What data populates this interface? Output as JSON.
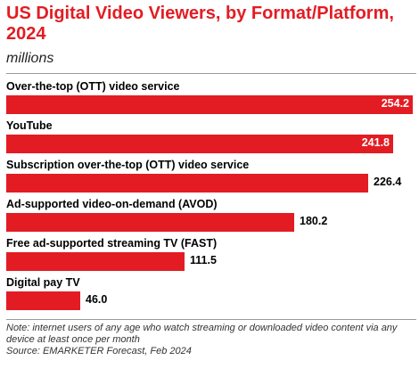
{
  "chart_data": {
    "type": "bar",
    "orientation": "horizontal",
    "title": "US Digital Video Viewers, by Format/Platform, 2024",
    "subtitle": "millions",
    "categories": [
      "Over-the-top (OTT) video service",
      "YouTube",
      "Subscription over-the-top (OTT) video service",
      "Ad-supported video-on-demand (AVOD)",
      "Free ad-supported streaming TV (FAST)",
      "Digital pay TV"
    ],
    "values": [
      254.2,
      241.8,
      226.4,
      180.2,
      111.5,
      46.0
    ],
    "value_labels": [
      "254.2",
      "241.8",
      "226.4",
      "180.2",
      "111.5",
      "46.0"
    ],
    "xlim": [
      0,
      254.2
    ],
    "grid": false,
    "bar_color": "#e31c23",
    "title_color": "#e31c23"
  },
  "footer": {
    "note": "Note: internet users of any age who watch streaming or downloaded video content via any device at least once per month",
    "source": "Source: EMARKETER Forecast, Feb 2024"
  }
}
